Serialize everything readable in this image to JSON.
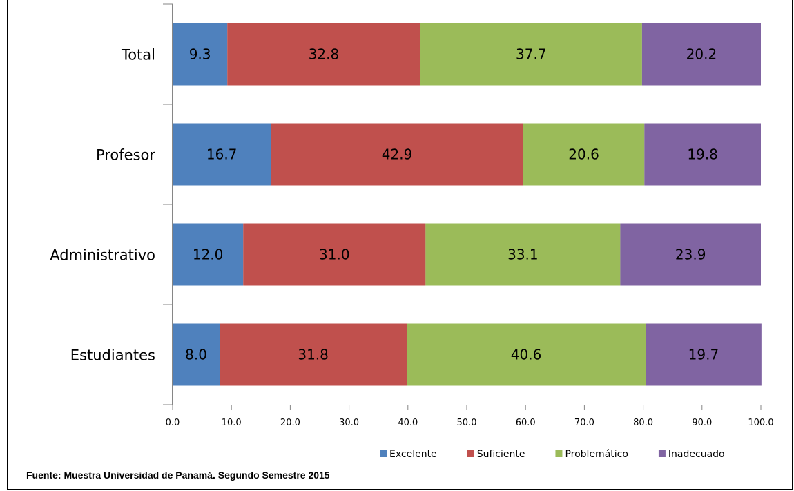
{
  "chart_data": {
    "type": "bar",
    "orientation": "horizontal",
    "stacked": true,
    "categories": [
      "Total",
      "Profesor",
      "Administrativo",
      "Estudiantes"
    ],
    "series": [
      {
        "name": "Excelente",
        "color": "#4f81bd",
        "values": [
          9.3,
          16.7,
          12.0,
          8.0
        ]
      },
      {
        "name": "Suficiente",
        "color": "#c0504d",
        "values": [
          32.8,
          42.9,
          31.0,
          31.8
        ]
      },
      {
        "name": "Problemático",
        "color": "#9bbb59",
        "values": [
          37.7,
          20.6,
          33.1,
          40.6
        ]
      },
      {
        "name": "Inadecuado",
        "color": "#8064a2",
        "values": [
          20.2,
          19.8,
          23.9,
          19.7
        ]
      }
    ],
    "xlim": [
      0,
      100
    ],
    "xticks": [
      "0.0",
      "10.0",
      "20.0",
      "30.0",
      "40.0",
      "50.0",
      "60.0",
      "70.0",
      "80.0",
      "90.0",
      "100.0"
    ],
    "grid": false,
    "legend": "bottom-right",
    "data_labels": true
  },
  "source_note": "Fuente:  Muestra Universidad de Panamá. Segundo Semestre 2015"
}
